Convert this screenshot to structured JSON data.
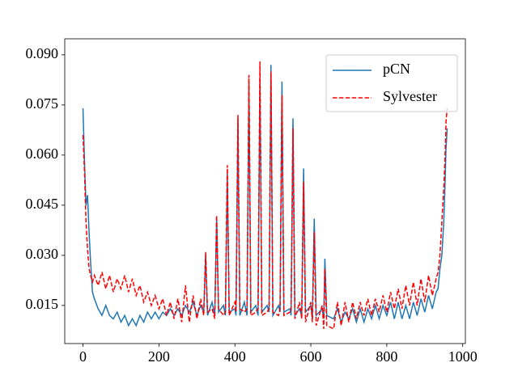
{
  "chart_data": {
    "type": "line",
    "x": [
      0,
      4,
      8,
      12,
      16,
      20,
      25,
      30,
      40,
      50,
      60,
      70,
      80,
      90,
      100,
      110,
      120,
      130,
      140,
      150,
      160,
      170,
      180,
      190,
      200,
      210,
      220,
      230,
      240,
      250,
      260,
      270,
      280,
      290,
      300,
      310,
      318,
      323,
      328,
      340,
      347,
      352,
      357,
      370,
      375,
      380,
      385,
      400,
      403,
      408,
      413,
      425,
      432,
      437,
      442,
      455,
      461,
      466,
      471,
      485,
      490,
      495,
      500,
      515,
      519,
      524,
      529,
      545,
      548,
      553,
      558,
      570,
      576,
      581,
      586,
      600,
      604,
      609,
      614,
      630,
      634,
      637,
      642,
      660,
      670,
      680,
      690,
      700,
      710,
      720,
      730,
      740,
      750,
      760,
      770,
      780,
      790,
      800,
      810,
      820,
      830,
      840,
      850,
      860,
      870,
      880,
      890,
      900,
      910,
      920,
      930,
      935,
      940,
      945,
      950,
      953,
      956,
      959
    ],
    "series": [
      {
        "name": "pCN",
        "color": "#1f77b4",
        "linestyle": "solid",
        "values": [
          0.074,
          0.058,
          0.045,
          0.048,
          0.037,
          0.028,
          0.019,
          0.017,
          0.014,
          0.012,
          0.015,
          0.012,
          0.011,
          0.013,
          0.01,
          0.012,
          0.009,
          0.011,
          0.009,
          0.012,
          0.01,
          0.013,
          0.011,
          0.013,
          0.011,
          0.013,
          0.012,
          0.014,
          0.012,
          0.014,
          0.012,
          0.015,
          0.013,
          0.016,
          0.012,
          0.015,
          0.013,
          0.03,
          0.012,
          0.016,
          0.012,
          0.041,
          0.013,
          0.015,
          0.012,
          0.055,
          0.013,
          0.014,
          0.012,
          0.071,
          0.012,
          0.016,
          0.012,
          0.082,
          0.013,
          0.015,
          0.012,
          0.083,
          0.013,
          0.015,
          0.013,
          0.087,
          0.012,
          0.015,
          0.013,
          0.082,
          0.013,
          0.014,
          0.012,
          0.071,
          0.012,
          0.014,
          0.012,
          0.056,
          0.013,
          0.015,
          0.011,
          0.041,
          0.012,
          0.014,
          0.011,
          0.029,
          0.012,
          0.011,
          0.014,
          0.01,
          0.013,
          0.011,
          0.014,
          0.01,
          0.014,
          0.01,
          0.014,
          0.011,
          0.015,
          0.011,
          0.015,
          0.012,
          0.016,
          0.011,
          0.016,
          0.011,
          0.015,
          0.011,
          0.016,
          0.012,
          0.017,
          0.013,
          0.018,
          0.014,
          0.019,
          0.02,
          0.026,
          0.03,
          0.04,
          0.05,
          0.062,
          0.068
        ]
      },
      {
        "name": "Sylvester",
        "color": "#ff0000",
        "linestyle": "dashed",
        "values": [
          0.066,
          0.055,
          0.04,
          0.032,
          0.026,
          0.024,
          0.022,
          0.024,
          0.021,
          0.025,
          0.02,
          0.024,
          0.019,
          0.023,
          0.02,
          0.024,
          0.019,
          0.023,
          0.018,
          0.021,
          0.016,
          0.019,
          0.015,
          0.018,
          0.014,
          0.017,
          0.012,
          0.016,
          0.011,
          0.017,
          0.01,
          0.021,
          0.01,
          0.018,
          0.011,
          0.017,
          0.012,
          0.031,
          0.013,
          0.014,
          0.011,
          0.042,
          0.014,
          0.012,
          0.013,
          0.057,
          0.012,
          0.016,
          0.013,
          0.072,
          0.014,
          0.013,
          0.014,
          0.084,
          0.012,
          0.013,
          0.014,
          0.088,
          0.012,
          0.013,
          0.014,
          0.085,
          0.013,
          0.012,
          0.014,
          0.078,
          0.012,
          0.013,
          0.013,
          0.068,
          0.011,
          0.016,
          0.011,
          0.052,
          0.01,
          0.016,
          0.01,
          0.037,
          0.009,
          0.015,
          0.008,
          0.026,
          0.009,
          0.008,
          0.016,
          0.009,
          0.016,
          0.01,
          0.016,
          0.011,
          0.016,
          0.012,
          0.017,
          0.012,
          0.017,
          0.013,
          0.018,
          0.013,
          0.019,
          0.014,
          0.02,
          0.014,
          0.021,
          0.015,
          0.022,
          0.015,
          0.023,
          0.016,
          0.024,
          0.018,
          0.023,
          0.025,
          0.03,
          0.04,
          0.05,
          0.058,
          0.07,
          0.074
        ]
      }
    ],
    "xlim": [
      -48,
      1007
    ],
    "ylim": [
      0.0036,
      0.0948
    ],
    "xticks": [
      0,
      200,
      400,
      600,
      800,
      1000
    ],
    "yticks": [
      0.015,
      {
        "value": 0.03,
        "label": "0.030"
      },
      0.045,
      {
        "value": 0.06,
        "label": "0.060"
      },
      0.075,
      {
        "value": 0.09,
        "label": "0.090"
      }
    ],
    "legend": "upper right"
  }
}
